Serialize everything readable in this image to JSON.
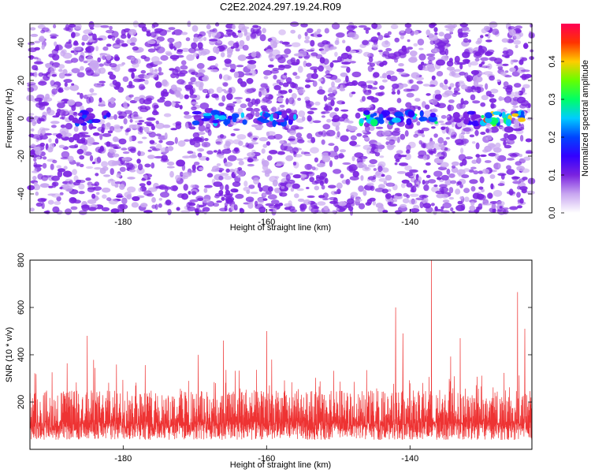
{
  "title": "C2E2.2024.297.19.24.R09",
  "colors": {
    "snr_line": "#ee3333",
    "colormap": [
      "#ffffff",
      "#c8a6f0",
      "#7a22e0",
      "#3300ff",
      "#0044ff",
      "#00ccff",
      "#00ff66",
      "#66ff00",
      "#ffcc00",
      "#ff3300",
      "#ff0055"
    ]
  },
  "chart_data": [
    {
      "type": "heatmap",
      "title": "C2E2.2024.297.19.24.R09",
      "xlabel": "Height of straight line (km)",
      "ylabel": "Frequency (Hz)",
      "xlim": [
        -193,
        -123
      ],
      "ylim": [
        -50,
        50
      ],
      "x_ticks": [
        -180,
        -160,
        -140
      ],
      "y_ticks": [
        -40,
        -20,
        0,
        20,
        40
      ],
      "colorbar": {
        "label": "Normalized spectral amplitude",
        "range": [
          0,
          0.5
        ],
        "ticks": [
          "0.0",
          "0.1",
          "0.2",
          "0.3",
          "0.4"
        ]
      },
      "signal_band_hz": 0,
      "bright_segments": [
        {
          "x_range": [
            -187,
            -182
          ],
          "amplitude": 0.2
        },
        {
          "x_range": [
            -170,
            -163
          ],
          "amplitude": 0.25
        },
        {
          "x_range": [
            -161,
            -155
          ],
          "amplitude": 0.25
        },
        {
          "x_range": [
            -147,
            -136
          ],
          "amplitude": 0.3
        },
        {
          "x_range": [
            -134,
            -130
          ],
          "amplitude": 0.15
        },
        {
          "x_range": [
            -130,
            -124
          ],
          "amplitude": 0.45
        }
      ]
    },
    {
      "type": "line",
      "xlabel": "Height of straight line (km)",
      "ylabel": "SNR (10 * v/v)",
      "xlim": [
        -193,
        -123
      ],
      "ylim": [
        0,
        800
      ],
      "x_ticks": [
        -180,
        -160,
        -140
      ],
      "y_ticks": [
        200,
        400,
        600,
        800
      ],
      "baseline_range": [
        80,
        250
      ],
      "spikes": [
        {
          "x": -185,
          "y": 480
        },
        {
          "x": -166,
          "y": 460
        },
        {
          "x": -160,
          "y": 500
        },
        {
          "x": -142,
          "y": 600
        },
        {
          "x": -141,
          "y": 490
        },
        {
          "x": -137,
          "y": 800
        },
        {
          "x": -133,
          "y": 470
        },
        {
          "x": -125,
          "y": 665
        },
        {
          "x": -124,
          "y": 510
        }
      ]
    }
  ]
}
